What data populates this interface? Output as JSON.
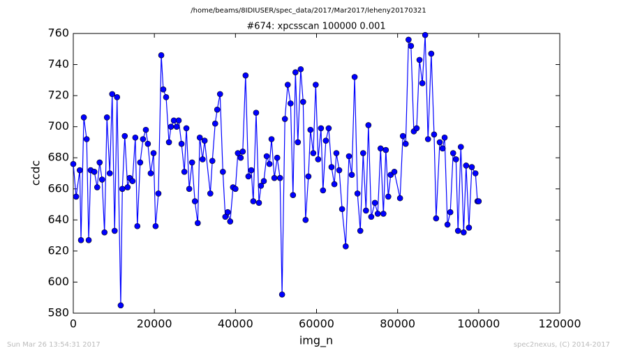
{
  "chart_data": {
    "type": "line",
    "title": "/home/beams/8IDIUSER/spec_data/2017/Mar2017/leheny20170321",
    "subtitle": "#674: xpcsscan 100000 0.001",
    "x_label": "img_n",
    "y_label": "ccdc",
    "color": "#0000ff",
    "xlim": [
      0,
      120000
    ],
    "xticks": [
      0,
      20000,
      40000,
      60000,
      80000,
      100000,
      120000
    ],
    "ylim": [
      580,
      760
    ],
    "yticks": [
      580,
      600,
      620,
      640,
      660,
      680,
      700,
      720,
      740,
      760
    ],
    "x": [
      0,
      700,
      1600,
      1900,
      2600,
      3300,
      3800,
      4300,
      5200,
      5900,
      6500,
      7100,
      7700,
      8300,
      9000,
      9600,
      10200,
      10800,
      11700,
      12100,
      12700,
      13400,
      13900,
      14600,
      15300,
      15800,
      16500,
      17200,
      17900,
      18400,
      19100,
      19800,
      20300,
      21000,
      21700,
      22200,
      22900,
      23600,
      24100,
      24800,
      25500,
      26000,
      26700,
      27400,
      27900,
      28600,
      29300,
      30000,
      30700,
      31200,
      31900,
      32400,
      33800,
      34300,
      35000,
      35500,
      36200,
      36900,
      37500,
      38100,
      38700,
      39400,
      40000,
      40600,
      41300,
      41800,
      42500,
      43200,
      43900,
      44400,
      45100,
      45800,
      46300,
      47000,
      47700,
      48400,
      48900,
      49600,
      50300,
      51000,
      51500,
      52200,
      52900,
      53600,
      54200,
      54800,
      55400,
      56100,
      56700,
      57300,
      58000,
      58500,
      59200,
      59800,
      60400,
      61100,
      61600,
      62300,
      63000,
      63700,
      64400,
      64900,
      65600,
      66300,
      67200,
      68000,
      68700,
      69400,
      70100,
      70800,
      71500,
      72200,
      72800,
      73500,
      74400,
      75100,
      75800,
      76500,
      77100,
      77700,
      78300,
      79200,
      80600,
      81300,
      82000,
      82700,
      83300,
      84000,
      84700,
      85400,
      86100,
      86800,
      87500,
      88300,
      89000,
      89500,
      90400,
      91100,
      91600,
      92300,
      93000,
      93700,
      94400,
      94900,
      95600,
      96300,
      96900,
      97600,
      98300,
      99200,
      99700,
      100000
    ],
    "values": [
      676,
      655,
      672,
      627,
      706,
      692,
      627,
      672,
      671,
      661,
      677,
      666,
      632,
      706,
      670,
      721,
      633,
      719,
      585,
      660,
      694,
      661,
      667,
      665,
      693,
      636,
      677,
      692,
      698,
      689,
      670,
      683,
      636,
      657,
      746,
      724,
      719,
      690,
      700,
      704,
      700,
      704,
      689,
      671,
      699,
      660,
      677,
      652,
      638,
      693,
      679,
      691,
      657,
      678,
      702,
      711,
      721,
      671,
      642,
      645,
      639,
      661,
      660,
      683,
      680,
      684,
      733,
      668,
      672,
      652,
      709,
      651,
      662,
      665,
      681,
      676,
      692,
      667,
      680,
      667,
      592,
      705,
      727,
      715,
      656,
      735,
      690,
      737,
      716,
      640,
      668,
      698,
      683,
      727,
      679,
      699,
      659,
      691,
      699,
      674,
      663,
      683,
      672,
      647,
      623,
      681,
      669,
      732,
      657,
      633,
      683,
      646,
      701,
      642,
      651,
      644,
      686,
      644,
      685,
      655,
      669,
      671,
      654,
      694,
      689,
      756,
      752,
      697,
      699,
      743,
      728,
      759,
      692,
      747,
      695,
      641,
      690,
      686,
      693,
      637,
      645,
      683,
      679,
      633,
      687,
      632,
      675,
      635,
      674,
      670,
      652,
      652
    ]
  },
  "footer": {
    "timestamp": "Sun Mar 26 13:54:31 2017",
    "credit": "spec2nexus, (C) 2014-2017"
  }
}
